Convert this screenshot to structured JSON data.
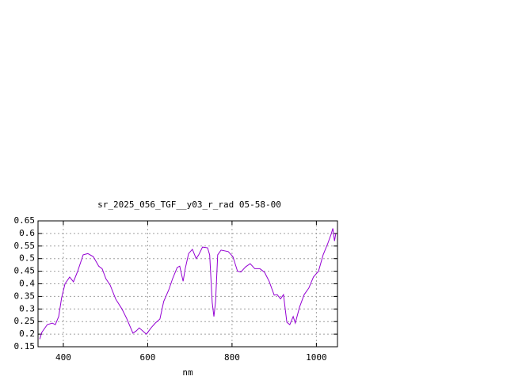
{
  "chart_data": {
    "type": "line",
    "title": "sr_2025_056_TGF__y03_r_rad 05-58-00",
    "x_label": "nm",
    "xlim": [
      340,
      1050
    ],
    "xticks": [
      400,
      600,
      800,
      1000
    ],
    "ylim": [
      0.15,
      0.65
    ],
    "yticks": [
      0.15,
      0.2,
      0.25,
      0.3,
      0.35,
      0.4,
      0.45,
      0.5,
      0.55,
      0.6,
      0.65
    ],
    "grid": true,
    "series": [
      {
        "color": "#9400d3",
        "x": [
          344,
          349,
          362,
          374,
          381,
          389,
          396,
          404,
          415,
          424,
          434,
          447,
          458,
          471,
          484,
          492,
          501,
          511,
          524,
          539,
          550,
          565,
          573,
          580,
          590,
          597,
          608,
          618,
          629,
          638,
          650,
          659,
          670,
          676,
          684,
          689,
          697,
          706,
          715,
          721,
          730,
          742,
          747,
          753,
          757,
          761,
          766,
          774,
          791,
          802,
          813,
          821,
          832,
          843,
          854,
          866,
          877,
          888,
          900,
          907,
          915,
          922,
          930,
          937,
          945,
          950,
          960,
          971,
          982,
          993,
          1005,
          1016,
          1027,
          1035,
          1039,
          1043,
          1046
        ],
        "values": [
          0.18,
          0.207,
          0.238,
          0.244,
          0.238,
          0.27,
          0.345,
          0.4,
          0.427,
          0.408,
          0.45,
          0.515,
          0.52,
          0.508,
          0.47,
          0.46,
          0.42,
          0.395,
          0.34,
          0.3,
          0.263,
          0.204,
          0.213,
          0.225,
          0.21,
          0.2,
          0.225,
          0.244,
          0.26,
          0.33,
          0.376,
          0.42,
          0.465,
          0.47,
          0.41,
          0.46,
          0.52,
          0.537,
          0.5,
          0.515,
          0.546,
          0.543,
          0.515,
          0.326,
          0.27,
          0.33,
          0.515,
          0.534,
          0.528,
          0.508,
          0.45,
          0.447,
          0.467,
          0.48,
          0.46,
          0.46,
          0.446,
          0.41,
          0.355,
          0.357,
          0.34,
          0.357,
          0.247,
          0.238,
          0.27,
          0.244,
          0.307,
          0.357,
          0.383,
          0.427,
          0.45,
          0.515,
          0.56,
          0.597,
          0.62,
          0.57,
          0.6
        ]
      }
    ]
  }
}
